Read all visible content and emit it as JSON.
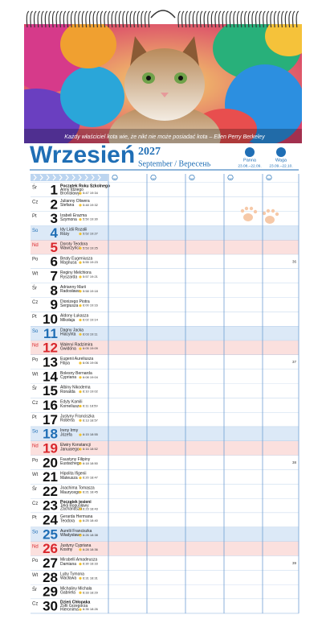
{
  "quote": "Każdy właściciel kota wie, że nikt nie może posiadać kota – Ellen Perry Berkeley",
  "header": {
    "title": "Wrzesień",
    "year": "2027",
    "subtitle": "September / Вересень",
    "signs": [
      {
        "name": "Panna",
        "dates": "23.08.–22.09."
      },
      {
        "name": "Waga",
        "dates": "23.09.–22.10."
      }
    ]
  },
  "days": [
    {
      "weekday": "Śr",
      "day": "1",
      "event": "Początek Roku Szkolnego",
      "names": [
        "Anny Idziego",
        "Bronisławy"
      ],
      "sun": "5:47 19:34"
    },
    {
      "weekday": "Cz",
      "day": "2",
      "names": [
        "Julianny Oliwera",
        "Stefana"
      ],
      "sun": "5:48 19:32"
    },
    {
      "weekday": "Pt",
      "day": "3",
      "names": [
        "Izabeli Erazma",
        "Szymona"
      ],
      "sun": "5:50 19:30"
    },
    {
      "weekday": "So",
      "day": "4",
      "names": [
        "Idy Lidii Rozalii",
        "Róży"
      ],
      "sun": "5:52 19:27"
    },
    {
      "weekday": "Nd",
      "day": "5",
      "names": [
        "Doroty Teodora",
        "Wawrzyńca"
      ],
      "sun": "5:53 19:25"
    },
    {
      "weekday": "Po",
      "day": "6",
      "names": [
        "Beaty Eugeniusza",
        "Magnusa"
      ],
      "sun": "5:55 19:23",
      "week": "36"
    },
    {
      "weekday": "Wt",
      "day": "7",
      "names": [
        "Reginy Melchiora",
        "Ryszarda"
      ],
      "sun": "5:57 19:21"
    },
    {
      "weekday": "Śr",
      "day": "8",
      "names": [
        "Adrianny Marii",
        "Radosława"
      ],
      "sun": "5:58 19:18"
    },
    {
      "weekday": "Cz",
      "day": "9",
      "names": [
        "Dionizego Piotra",
        "Sergiusza"
      ],
      "sun": "6:00 19:16"
    },
    {
      "weekday": "Pt",
      "day": "10",
      "names": [
        "Aldony Łukasza",
        "Mikołaja"
      ],
      "sun": "6:02 19:14"
    },
    {
      "weekday": "So",
      "day": "11",
      "names": [
        "Dagny Jacka",
        "Hiacynta"
      ],
      "sun": "6:03 19:11"
    },
    {
      "weekday": "Nd",
      "day": "12",
      "names": [
        "Waleryi Radzimira",
        "Gwidona"
      ],
      "sun": "6:05 19:09"
    },
    {
      "weekday": "Po",
      "day": "13",
      "names": [
        "Eugenii Aureliusza",
        "Filipa"
      ],
      "sun": "6:06 19:06",
      "week": "37"
    },
    {
      "weekday": "Wt",
      "day": "14",
      "names": [
        "Bolesny Bernarda",
        "Cypriana"
      ],
      "sun": "6:08 19:04"
    },
    {
      "weekday": "Śr",
      "day": "15",
      "names": [
        "Albiny Nikodema",
        "Ronalda"
      ],
      "sun": "6:10 19:02"
    },
    {
      "weekday": "Cz",
      "day": "16",
      "names": [
        "Edyty Kamili",
        "Korneliusza"
      ],
      "sun": "6:11 18:59"
    },
    {
      "weekday": "Pt",
      "day": "17",
      "names": [
        "Justyny Franciszka",
        "Roberta"
      ],
      "sun": "6:13 18:57"
    },
    {
      "weekday": "So",
      "day": "18",
      "names": [
        "Ireny Irmy",
        "Józefa"
      ],
      "sun": "6:15 18:55"
    },
    {
      "weekday": "Nd",
      "day": "19",
      "names": [
        "Elwiry Konstancji",
        "Januarego"
      ],
      "sun": "6:16 18:52"
    },
    {
      "weekday": "Po",
      "day": "20",
      "names": [
        "Faustyny Filipiny",
        "Eustachego"
      ],
      "sun": "6:18 18:50",
      "week": "38"
    },
    {
      "weekday": "Wt",
      "day": "21",
      "names": [
        "Hipolita Ifigenii",
        "Mateusza"
      ],
      "sun": "6:20 18:47"
    },
    {
      "weekday": "Śr",
      "day": "22",
      "names": [
        "Joachima Tomasza",
        "Maurycego"
      ],
      "sun": "6:21 18:45"
    },
    {
      "weekday": "Cz",
      "day": "23",
      "event": "Początek jesieni",
      "names": [
        "Tekli Bogusławy",
        "Zachariasza"
      ],
      "sun": "6:23 18:43"
    },
    {
      "weekday": "Pt",
      "day": "24",
      "names": [
        "Gerarda Hermana",
        "Teodora"
      ],
      "sun": "6:25 18:40"
    },
    {
      "weekday": "So",
      "day": "25",
      "names": [
        "Aurelii Franciszka",
        "Władysława"
      ],
      "sun": "6:26 18:38"
    },
    {
      "weekday": "Nd",
      "day": "26",
      "names": [
        "Justyny Cypriana",
        "Kosmy"
      ],
      "sun": "6:28 18:36"
    },
    {
      "weekday": "Po",
      "day": "27",
      "names": [
        "Mirabelli Amadeusza",
        "Damiana"
      ],
      "sun": "6:30 18:33",
      "week": "39"
    },
    {
      "weekday": "Wt",
      "day": "28",
      "names": [
        "Luby Tymona",
        "Wacława"
      ],
      "sun": "6:31 18:31"
    },
    {
      "weekday": "Śr",
      "day": "29",
      "names": [
        "Michaliny Michała",
        "Gabriela"
      ],
      "sun": "6:33 18:29"
    },
    {
      "weekday": "Cz",
      "day": "30",
      "event": "Dzień Chłopaka",
      "names": [
        "Zofii Grzegorza",
        "Hieronima"
      ],
      "sun": "6:35 18:26"
    }
  ]
}
